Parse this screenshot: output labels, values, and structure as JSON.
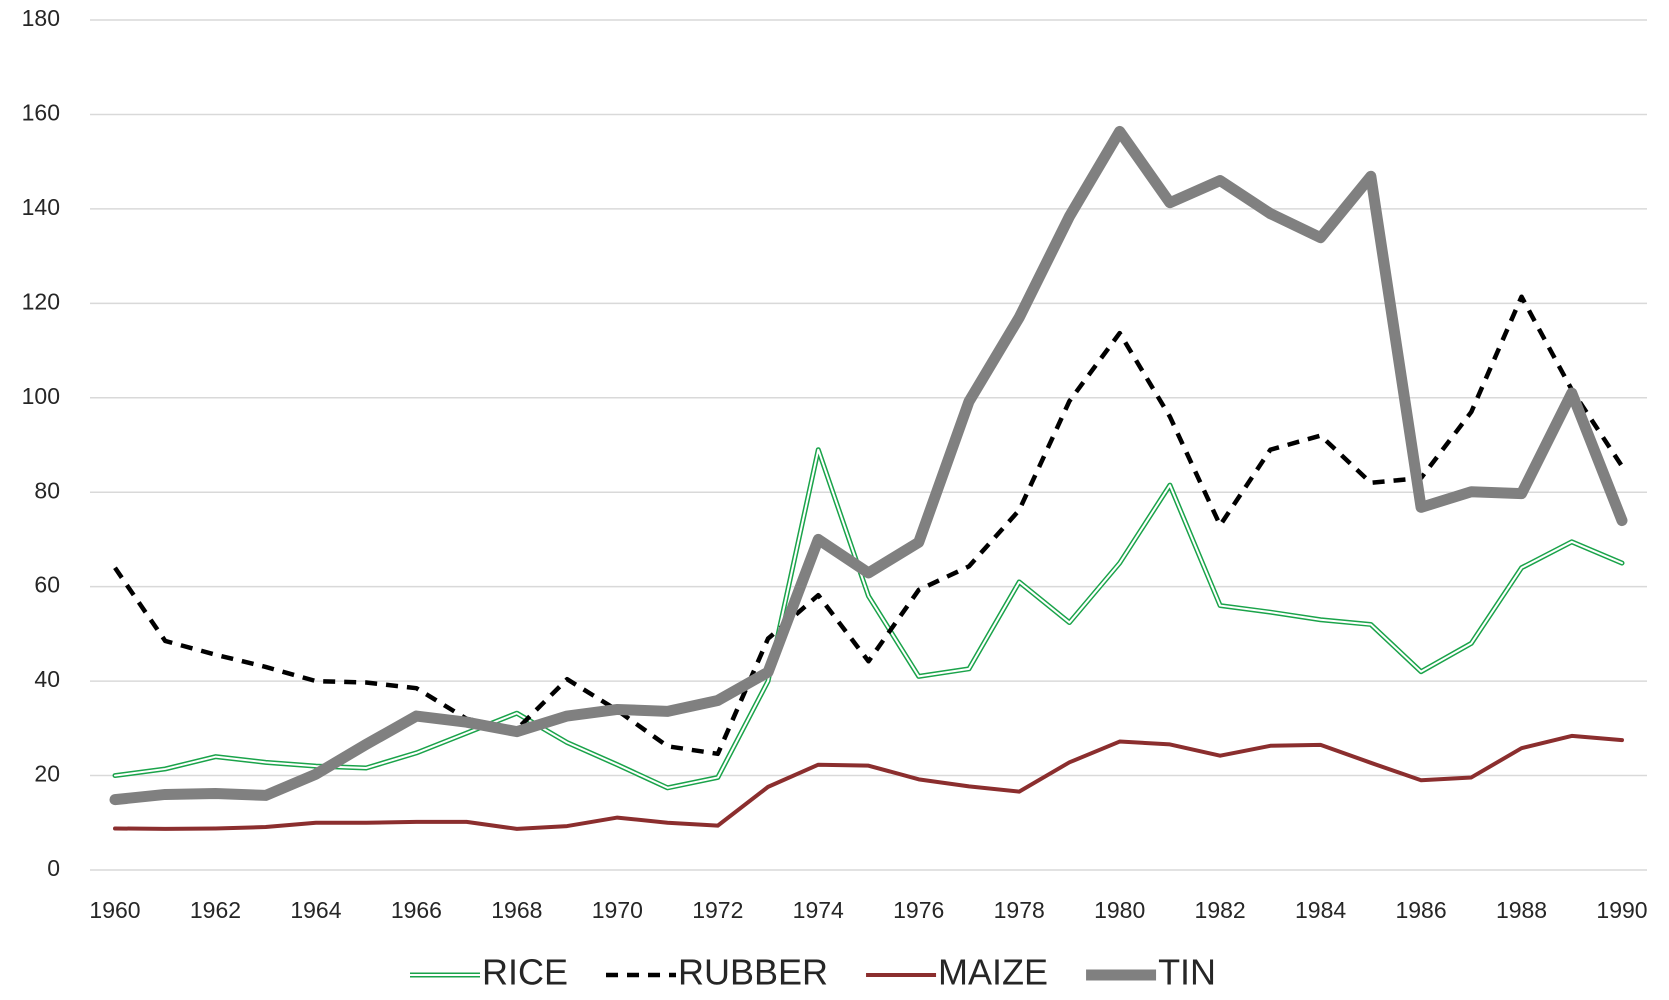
{
  "chart_data": {
    "type": "line",
    "x": [
      1960,
      1961,
      1962,
      1963,
      1964,
      1965,
      1966,
      1967,
      1968,
      1969,
      1970,
      1971,
      1972,
      1973,
      1974,
      1975,
      1976,
      1977,
      1978,
      1979,
      1980,
      1981,
      1982,
      1983,
      1984,
      1985,
      1986,
      1987,
      1988,
      1989,
      1990
    ],
    "xlim": [
      1960,
      1990
    ],
    "xticks": [
      1960,
      1962,
      1964,
      1966,
      1968,
      1970,
      1972,
      1974,
      1976,
      1978,
      1980,
      1982,
      1984,
      1986,
      1988,
      1990
    ],
    "ylim": [
      0,
      180
    ],
    "yticks": [
      0,
      20,
      40,
      60,
      80,
      100,
      120,
      140,
      160,
      180
    ],
    "grid": true,
    "legend": "bottom",
    "series": [
      {
        "name": "RICE",
        "color": "#1aa34a",
        "style": "double",
        "values": [
          20,
          21.4,
          24,
          22.8,
          22,
          21.6,
          24.8,
          29,
          33.2,
          27,
          22.3,
          17.4,
          19.6,
          40,
          89,
          58,
          41,
          42.6,
          61,
          52.4,
          65,
          81.5,
          56,
          54.6,
          53,
          52,
          42,
          48,
          64,
          69.5,
          65
        ]
      },
      {
        "name": "RUBBER",
        "color": "#000000",
        "style": "dashed",
        "values": [
          64,
          48.5,
          45.6,
          43,
          40,
          39.7,
          38.5,
          32,
          29.8,
          40.4,
          33.8,
          26.2,
          24.6,
          49,
          58.2,
          44.2,
          59.3,
          64.3,
          76.2,
          99.3,
          113.7,
          96,
          73,
          89,
          92,
          82,
          83,
          97,
          121.4,
          101.7,
          85.5
        ]
      },
      {
        "name": "MAIZE",
        "color": "#8b2e2e",
        "style": "solid",
        "values": [
          8.8,
          8.7,
          8.8,
          9.1,
          10,
          10,
          10.2,
          10.2,
          8.7,
          9.3,
          11.1,
          10,
          9.4,
          17.6,
          22.3,
          22.1,
          19.2,
          17.7,
          16.6,
          22.8,
          27.2,
          26.6,
          24.2,
          26.3,
          26.5,
          22.7,
          19,
          19.6,
          25.8,
          28.4,
          27.5
        ]
      },
      {
        "name": "TIN",
        "color": "#808080",
        "style": "thick",
        "values": [
          14.9,
          16,
          16.2,
          15.8,
          20.3,
          26.6,
          32.6,
          31.3,
          29.3,
          32.6,
          34,
          33.6,
          35.9,
          41.9,
          70,
          62.9,
          69.4,
          99.2,
          117,
          138.4,
          156.4,
          141.3,
          146,
          139,
          133.9,
          146.9,
          76.8,
          80.1,
          79.7,
          101,
          74
        ]
      }
    ]
  }
}
